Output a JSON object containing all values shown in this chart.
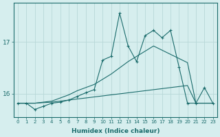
{
  "xlabel": "Humidex (Indice chaleur)",
  "bg_color": "#d6eeee",
  "grid_color": "#b8d8d8",
  "line_color": "#1a6b6b",
  "x_values": [
    0,
    1,
    2,
    3,
    4,
    5,
    6,
    7,
    8,
    9,
    10,
    11,
    12,
    13,
    14,
    15,
    16,
    17,
    18,
    19,
    20,
    21,
    22,
    23
  ],
  "y_main": [
    15.82,
    15.82,
    15.7,
    15.76,
    15.82,
    15.84,
    15.88,
    15.95,
    16.02,
    16.08,
    16.65,
    16.72,
    17.55,
    16.92,
    16.62,
    17.12,
    17.22,
    17.08,
    17.22,
    16.52,
    15.82,
    15.82,
    16.12,
    15.82
  ],
  "y_upper": [
    15.82,
    15.82,
    15.82,
    15.84,
    15.86,
    15.92,
    15.98,
    16.06,
    16.12,
    16.18,
    16.28,
    16.38,
    16.5,
    16.62,
    16.72,
    16.82,
    16.92,
    16.84,
    16.76,
    16.68,
    16.6,
    15.82,
    15.82,
    15.82
  ],
  "y_lower": [
    15.82,
    15.82,
    15.82,
    15.83,
    15.84,
    15.86,
    15.88,
    15.9,
    15.92,
    15.94,
    15.96,
    15.98,
    16.0,
    16.02,
    16.04,
    16.06,
    16.08,
    16.1,
    16.12,
    16.14,
    16.16,
    15.82,
    15.82,
    15.82
  ],
  "yticks": [
    16,
    17
  ],
  "ylim": [
    15.55,
    17.75
  ],
  "xlim": [
    -0.5,
    23.5
  ]
}
